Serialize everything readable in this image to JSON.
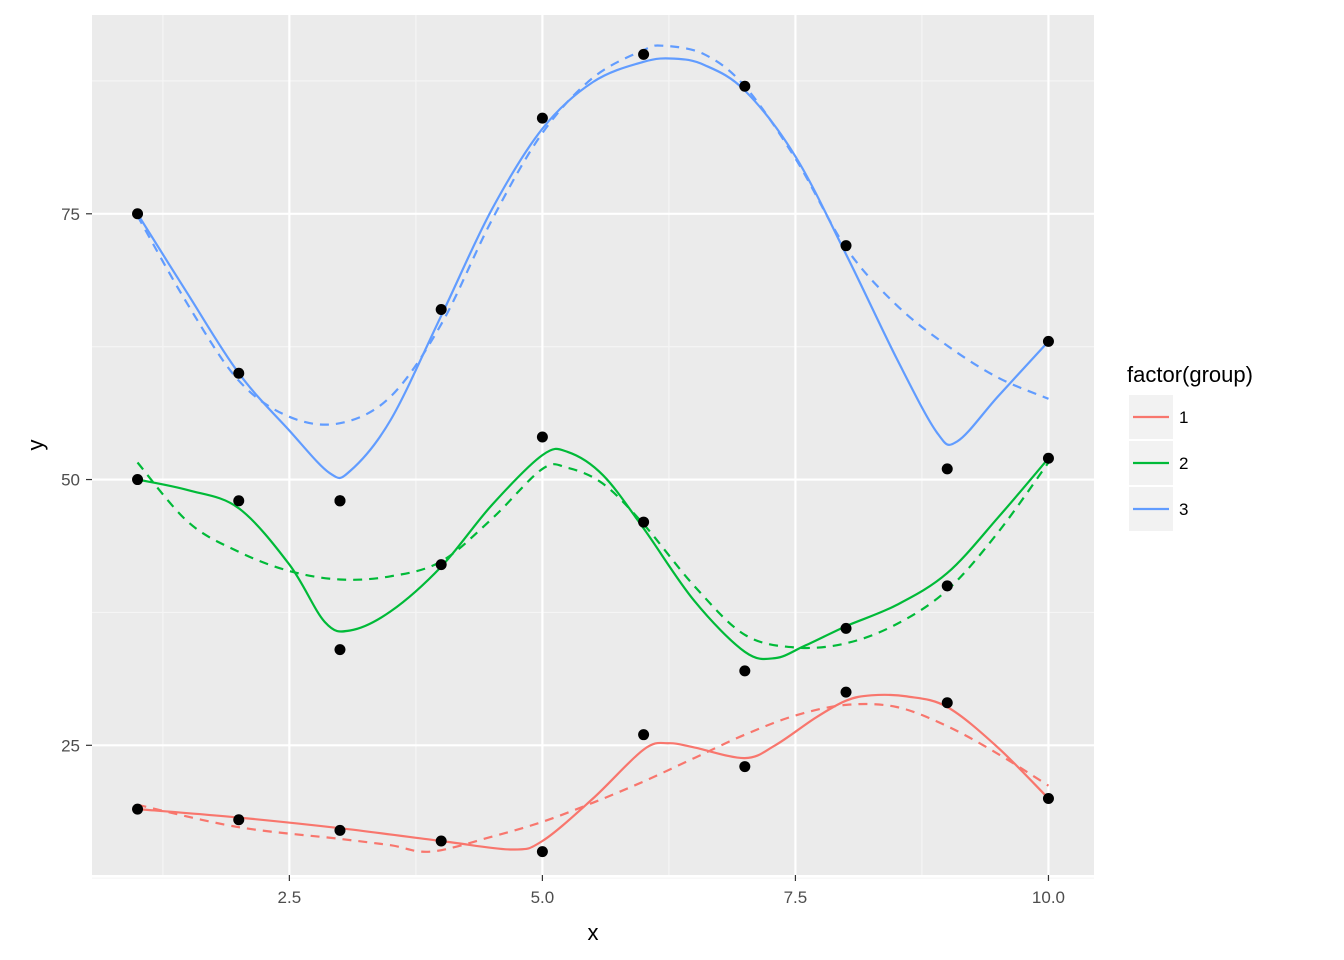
{
  "chart_data": {
    "type": "line",
    "xlabel": "x",
    "ylabel": "y",
    "xlim": [
      0.55,
      10.45
    ],
    "ylim": [
      12.8,
      93.7
    ],
    "x_ticks": [
      2.5,
      5.0,
      7.5,
      10.0
    ],
    "x_tick_labels": [
      "2.5",
      "5.0",
      "7.5",
      "10.0"
    ],
    "x_minor_ticks": [
      1.25,
      3.75,
      6.25,
      8.75
    ],
    "y_ticks": [
      25,
      50,
      75
    ],
    "y_tick_labels": [
      "25",
      "50",
      "75"
    ],
    "y_minor_ticks": [
      12.5,
      37.5,
      62.5,
      87.5
    ],
    "grid": true,
    "panel_background": "#ebebeb",
    "legend": {
      "title": "factor(group)",
      "placement": "right",
      "entries": [
        {
          "label": "1",
          "color": "#f8766d"
        },
        {
          "label": "2",
          "color": "#00ba38"
        },
        {
          "label": "3",
          "color": "#619cff"
        }
      ]
    },
    "x": [
      1,
      2,
      3,
      4,
      5,
      6,
      7,
      8,
      9,
      10
    ],
    "series": [
      {
        "name": "1",
        "color": "#f8766d",
        "points": [
          19,
          18,
          17,
          16,
          15,
          26,
          23,
          30,
          29,
          20
        ],
        "solid_smooth": [
          [
            1,
            19
          ],
          [
            2,
            18.2
          ],
          [
            3,
            17.2
          ],
          [
            4,
            16
          ],
          [
            4.7,
            15.2
          ],
          [
            5,
            16
          ],
          [
            5.5,
            20
          ],
          [
            6,
            24.6
          ],
          [
            6.25,
            25.2
          ],
          [
            6.5,
            24.8
          ],
          [
            7,
            23.8
          ],
          [
            7.3,
            25
          ],
          [
            7.7,
            27.6
          ],
          [
            8,
            29.2
          ],
          [
            8.25,
            29.7
          ],
          [
            8.6,
            29.6
          ],
          [
            9,
            28.6
          ],
          [
            9.5,
            24.8
          ],
          [
            10,
            20
          ]
        ],
        "dashed_smooth": [
          [
            1,
            19.4
          ],
          [
            2,
            17.3
          ],
          [
            3,
            16.2
          ],
          [
            3.5,
            15.6
          ],
          [
            3.9,
            15
          ],
          [
            4.5,
            16.4
          ],
          [
            5,
            17.8
          ],
          [
            5.5,
            19.6
          ],
          [
            6,
            21.6
          ],
          [
            6.5,
            23.8
          ],
          [
            7,
            26
          ],
          [
            7.5,
            27.8
          ],
          [
            8,
            28.8
          ],
          [
            8.5,
            28.6
          ],
          [
            9,
            26.8
          ],
          [
            9.5,
            24.2
          ],
          [
            10,
            21.2
          ]
        ]
      },
      {
        "name": "2",
        "color": "#00ba38",
        "points": [
          50,
          48,
          48,
          34,
          42,
          54,
          46,
          32,
          36,
          40,
          52
        ],
        "points_x": [
          1,
          2,
          3,
          3,
          4,
          5,
          6,
          7,
          8,
          9,
          10
        ],
        "solid_smooth": [
          [
            1,
            50
          ],
          [
            1.5,
            49
          ],
          [
            2,
            47.3
          ],
          [
            2.5,
            42
          ],
          [
            2.85,
            36.6
          ],
          [
            3.1,
            35.8
          ],
          [
            3.5,
            37.6
          ],
          [
            4,
            41.8
          ],
          [
            4.5,
            47.6
          ],
          [
            5,
            52.3
          ],
          [
            5.25,
            52.6
          ],
          [
            5.6,
            50.4
          ],
          [
            6,
            45.4
          ],
          [
            6.5,
            38.6
          ],
          [
            7,
            33.8
          ],
          [
            7.3,
            33.2
          ],
          [
            7.6,
            34.4
          ],
          [
            8,
            36.2
          ],
          [
            8.5,
            38.2
          ],
          [
            9,
            41.2
          ],
          [
            9.5,
            46.4
          ],
          [
            10,
            52
          ]
        ],
        "dashed_smooth": [
          [
            1,
            51.6
          ],
          [
            1.5,
            46
          ],
          [
            2,
            43.2
          ],
          [
            2.5,
            41.4
          ],
          [
            3,
            40.6
          ],
          [
            3.5,
            40.9
          ],
          [
            4,
            42.3
          ],
          [
            4.5,
            46.3
          ],
          [
            5,
            51
          ],
          [
            5.25,
            51.1
          ],
          [
            5.6,
            49.6
          ],
          [
            6,
            45.8
          ],
          [
            6.5,
            40
          ],
          [
            7,
            35.4
          ],
          [
            7.5,
            34.2
          ],
          [
            8,
            34.6
          ],
          [
            8.5,
            36.4
          ],
          [
            9,
            39.6
          ],
          [
            9.5,
            45
          ],
          [
            10,
            51.6
          ]
        ]
      },
      {
        "name": "3",
        "color": "#619cff",
        "points": [
          75,
          60,
          48,
          66,
          84,
          90,
          87,
          72,
          51,
          63
        ],
        "solid_smooth": [
          [
            1,
            75
          ],
          [
            1.5,
            67.4
          ],
          [
            2,
            60
          ],
          [
            2.5,
            54.6
          ],
          [
            2.9,
            50.6
          ],
          [
            3.1,
            50.8
          ],
          [
            3.5,
            55.6
          ],
          [
            4,
            65.4
          ],
          [
            4.5,
            75.4
          ],
          [
            5,
            83
          ],
          [
            5.5,
            87.4
          ],
          [
            6,
            89.3
          ],
          [
            6.3,
            89.6
          ],
          [
            6.6,
            89
          ],
          [
            7,
            86.6
          ],
          [
            7.5,
            80.4
          ],
          [
            8,
            71.2
          ],
          [
            8.5,
            61.4
          ],
          [
            8.9,
            54.4
          ],
          [
            9.1,
            53.6
          ],
          [
            9.5,
            57.8
          ],
          [
            10,
            63
          ]
        ],
        "dashed_smooth": [
          [
            1,
            74.8
          ],
          [
            1.5,
            66.4
          ],
          [
            2,
            59.3
          ],
          [
            2.5,
            55.9
          ],
          [
            3,
            55.3
          ],
          [
            3.5,
            57.8
          ],
          [
            4,
            64.6
          ],
          [
            4.5,
            74.4
          ],
          [
            5,
            82.6
          ],
          [
            5.5,
            87.8
          ],
          [
            6,
            90.4
          ],
          [
            6.2,
            90.8
          ],
          [
            6.6,
            90
          ],
          [
            7,
            87
          ],
          [
            7.5,
            80.2
          ],
          [
            8,
            71.8
          ],
          [
            8.5,
            66.4
          ],
          [
            9,
            62.6
          ],
          [
            9.5,
            59.6
          ],
          [
            10,
            57.6
          ]
        ]
      }
    ]
  }
}
